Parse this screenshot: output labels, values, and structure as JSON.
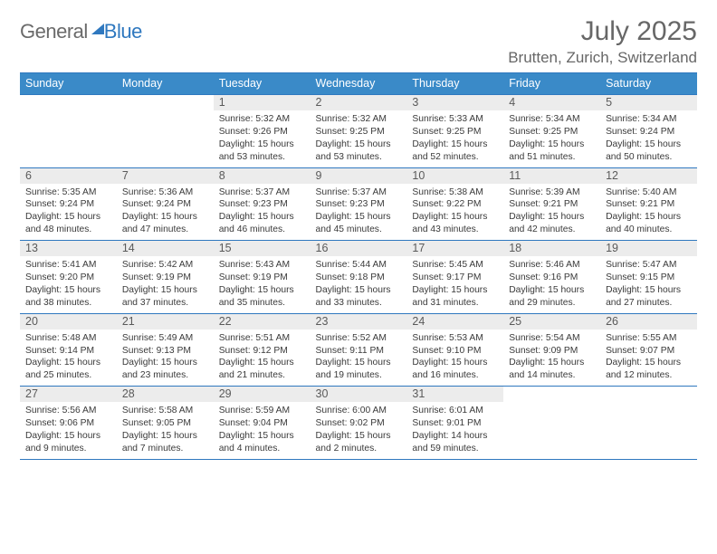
{
  "logo": {
    "text1": "General",
    "text2": "Blue"
  },
  "title": "July 2025",
  "location": "Brutten, Zurich, Switzerland",
  "colors": {
    "header_bg": "#3a8ac8",
    "border": "#2f78bf",
    "daynum_bg": "#ececec",
    "text": "#3a3a3a",
    "title_text": "#676767"
  },
  "weekdays": [
    "Sunday",
    "Monday",
    "Tuesday",
    "Wednesday",
    "Thursday",
    "Friday",
    "Saturday"
  ],
  "weeks": [
    [
      null,
      null,
      {
        "n": "1",
        "sr": "5:32 AM",
        "ss": "9:26 PM",
        "dl": "15 hours and 53 minutes."
      },
      {
        "n": "2",
        "sr": "5:32 AM",
        "ss": "9:25 PM",
        "dl": "15 hours and 53 minutes."
      },
      {
        "n": "3",
        "sr": "5:33 AM",
        "ss": "9:25 PM",
        "dl": "15 hours and 52 minutes."
      },
      {
        "n": "4",
        "sr": "5:34 AM",
        "ss": "9:25 PM",
        "dl": "15 hours and 51 minutes."
      },
      {
        "n": "5",
        "sr": "5:34 AM",
        "ss": "9:24 PM",
        "dl": "15 hours and 50 minutes."
      }
    ],
    [
      {
        "n": "6",
        "sr": "5:35 AM",
        "ss": "9:24 PM",
        "dl": "15 hours and 48 minutes."
      },
      {
        "n": "7",
        "sr": "5:36 AM",
        "ss": "9:24 PM",
        "dl": "15 hours and 47 minutes."
      },
      {
        "n": "8",
        "sr": "5:37 AM",
        "ss": "9:23 PM",
        "dl": "15 hours and 46 minutes."
      },
      {
        "n": "9",
        "sr": "5:37 AM",
        "ss": "9:23 PM",
        "dl": "15 hours and 45 minutes."
      },
      {
        "n": "10",
        "sr": "5:38 AM",
        "ss": "9:22 PM",
        "dl": "15 hours and 43 minutes."
      },
      {
        "n": "11",
        "sr": "5:39 AM",
        "ss": "9:21 PM",
        "dl": "15 hours and 42 minutes."
      },
      {
        "n": "12",
        "sr": "5:40 AM",
        "ss": "9:21 PM",
        "dl": "15 hours and 40 minutes."
      }
    ],
    [
      {
        "n": "13",
        "sr": "5:41 AM",
        "ss": "9:20 PM",
        "dl": "15 hours and 38 minutes."
      },
      {
        "n": "14",
        "sr": "5:42 AM",
        "ss": "9:19 PM",
        "dl": "15 hours and 37 minutes."
      },
      {
        "n": "15",
        "sr": "5:43 AM",
        "ss": "9:19 PM",
        "dl": "15 hours and 35 minutes."
      },
      {
        "n": "16",
        "sr": "5:44 AM",
        "ss": "9:18 PM",
        "dl": "15 hours and 33 minutes."
      },
      {
        "n": "17",
        "sr": "5:45 AM",
        "ss": "9:17 PM",
        "dl": "15 hours and 31 minutes."
      },
      {
        "n": "18",
        "sr": "5:46 AM",
        "ss": "9:16 PM",
        "dl": "15 hours and 29 minutes."
      },
      {
        "n": "19",
        "sr": "5:47 AM",
        "ss": "9:15 PM",
        "dl": "15 hours and 27 minutes."
      }
    ],
    [
      {
        "n": "20",
        "sr": "5:48 AM",
        "ss": "9:14 PM",
        "dl": "15 hours and 25 minutes."
      },
      {
        "n": "21",
        "sr": "5:49 AM",
        "ss": "9:13 PM",
        "dl": "15 hours and 23 minutes."
      },
      {
        "n": "22",
        "sr": "5:51 AM",
        "ss": "9:12 PM",
        "dl": "15 hours and 21 minutes."
      },
      {
        "n": "23",
        "sr": "5:52 AM",
        "ss": "9:11 PM",
        "dl": "15 hours and 19 minutes."
      },
      {
        "n": "24",
        "sr": "5:53 AM",
        "ss": "9:10 PM",
        "dl": "15 hours and 16 minutes."
      },
      {
        "n": "25",
        "sr": "5:54 AM",
        "ss": "9:09 PM",
        "dl": "15 hours and 14 minutes."
      },
      {
        "n": "26",
        "sr": "5:55 AM",
        "ss": "9:07 PM",
        "dl": "15 hours and 12 minutes."
      }
    ],
    [
      {
        "n": "27",
        "sr": "5:56 AM",
        "ss": "9:06 PM",
        "dl": "15 hours and 9 minutes."
      },
      {
        "n": "28",
        "sr": "5:58 AM",
        "ss": "9:05 PM",
        "dl": "15 hours and 7 minutes."
      },
      {
        "n": "29",
        "sr": "5:59 AM",
        "ss": "9:04 PM",
        "dl": "15 hours and 4 minutes."
      },
      {
        "n": "30",
        "sr": "6:00 AM",
        "ss": "9:02 PM",
        "dl": "15 hours and 2 minutes."
      },
      {
        "n": "31",
        "sr": "6:01 AM",
        "ss": "9:01 PM",
        "dl": "14 hours and 59 minutes."
      },
      null,
      null
    ]
  ],
  "labels": {
    "sunrise": "Sunrise:",
    "sunset": "Sunset:",
    "daylight": "Daylight:"
  }
}
